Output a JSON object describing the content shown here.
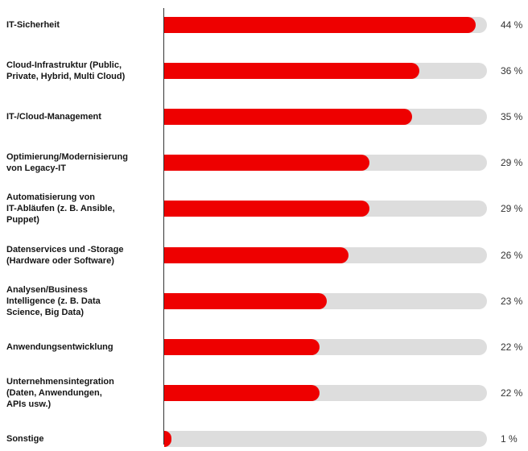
{
  "chart_data": {
    "type": "bar",
    "orientation": "horizontal",
    "categories": [
      "IT-Sicherheit",
      "Cloud-Infrastruktur (Public,\nPrivate, Hybrid, Multi Cloud)",
      "IT-/Cloud-Management",
      "Optimierung/Modernisierung\nvon Legacy-IT",
      "Automatisierung von\nIT-Abläufen (z. B. Ansible,\nPuppet)",
      "Datenservices und -Storage\n(Hardware oder Software)",
      "Analysen/Business\nIntelligence (z. B. Data\nScience, Big Data)",
      "Anwendungsentwicklung",
      "Unternehmensintegration\n(Daten, Anwendungen,\nAPIs usw.)",
      "Sonstige"
    ],
    "values": [
      44,
      36,
      35,
      29,
      29,
      26,
      23,
      22,
      22,
      1
    ],
    "value_labels": [
      "44 %",
      "36 %",
      "35 %",
      "29 %",
      "29 %",
      "26 %",
      "23 %",
      "22 %",
      "22 %",
      "1 %"
    ],
    "color": "#ee0000",
    "track_color": "#dddddd",
    "xlim": [
      0,
      45.6
    ]
  }
}
